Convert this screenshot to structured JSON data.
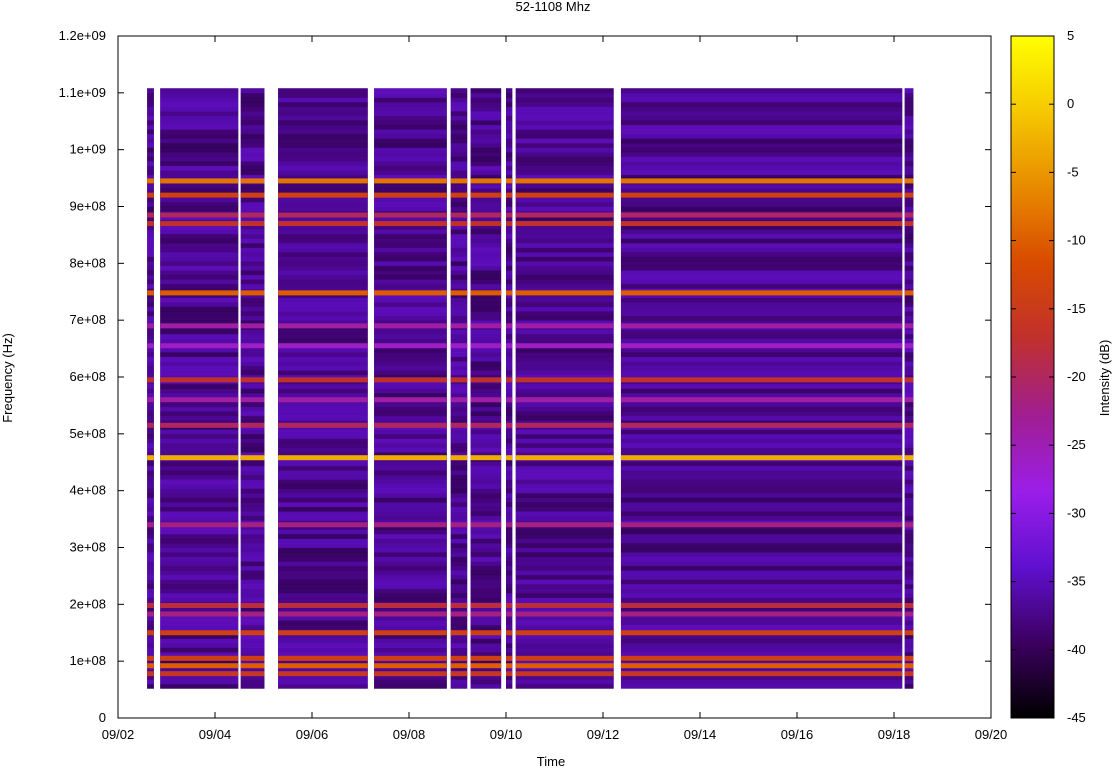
{
  "chart_data": {
    "type": "heatmap",
    "title": "52-1108 Mhz",
    "xlabel": "Time",
    "ylabel": "Frequency (Hz)",
    "colorbar_label": "Intensity (dB)",
    "x_ticks": [
      "09/02",
      "09/04",
      "09/06",
      "09/08",
      "09/10",
      "09/12",
      "09/14",
      "09/16",
      "09/18",
      "09/20"
    ],
    "x_range": [
      "09/02",
      "09/20"
    ],
    "y_ticks": [
      "0",
      "1e+08",
      "2e+08",
      "3e+08",
      "4e+08",
      "5e+08",
      "6e+08",
      "7e+08",
      "8e+08",
      "9e+08",
      "1e+09",
      "1.1e+09",
      "1.2e+09"
    ],
    "y_range": [
      0,
      1200000000
    ],
    "data_frequency_range_hz": [
      52000000,
      1108000000
    ],
    "data_time_range_days": [
      0.6,
      16.4
    ],
    "colorbar_ticks": [
      "5",
      "0",
      "-5",
      "-10",
      "-15",
      "-20",
      "-25",
      "-30",
      "-35",
      "-40",
      "-45"
    ],
    "colorbar_range_db": [
      -45,
      5
    ],
    "colormap": [
      "#000000",
      "#3c0060",
      "#6010d0",
      "#9b1ee8",
      "#a01e90",
      "#c0302e",
      "#d84a00",
      "#e88a00",
      "#f5c800",
      "#ffff00"
    ],
    "background_level_db": -37,
    "gaps_days": [
      [
        0.74,
        0.87
      ],
      [
        2.48,
        2.53
      ],
      [
        3.02,
        3.3
      ],
      [
        5.15,
        5.28
      ],
      [
        6.78,
        6.86
      ],
      [
        7.2,
        7.27
      ],
      [
        7.9,
        8.0
      ],
      [
        8.13,
        8.2
      ],
      [
        10.22,
        10.37
      ],
      [
        16.17,
        16.22
      ]
    ],
    "bands": [
      {
        "freq_hz": 945000000,
        "level_db": -8
      },
      {
        "freq_hz": 920000000,
        "level_db": -14
      },
      {
        "freq_hz": 885000000,
        "level_db": -20
      },
      {
        "freq_hz": 870000000,
        "level_db": -17
      },
      {
        "freq_hz": 748000000,
        "level_db": -10
      },
      {
        "freq_hz": 690000000,
        "level_db": -24
      },
      {
        "freq_hz": 655000000,
        "level_db": -26
      },
      {
        "freq_hz": 595000000,
        "level_db": -17
      },
      {
        "freq_hz": 560000000,
        "level_db": -24
      },
      {
        "freq_hz": 515000000,
        "level_db": -20
      },
      {
        "freq_hz": 458000000,
        "level_db": -3
      },
      {
        "freq_hz": 340000000,
        "level_db": -22
      },
      {
        "freq_hz": 198000000,
        "level_db": -18
      },
      {
        "freq_hz": 183000000,
        "level_db": -22
      },
      {
        "freq_hz": 150000000,
        "level_db": -14
      },
      {
        "freq_hz": 105000000,
        "level_db": -14
      },
      {
        "freq_hz": 92000000,
        "level_db": -10
      },
      {
        "freq_hz": 78000000,
        "level_db": -16
      }
    ]
  }
}
